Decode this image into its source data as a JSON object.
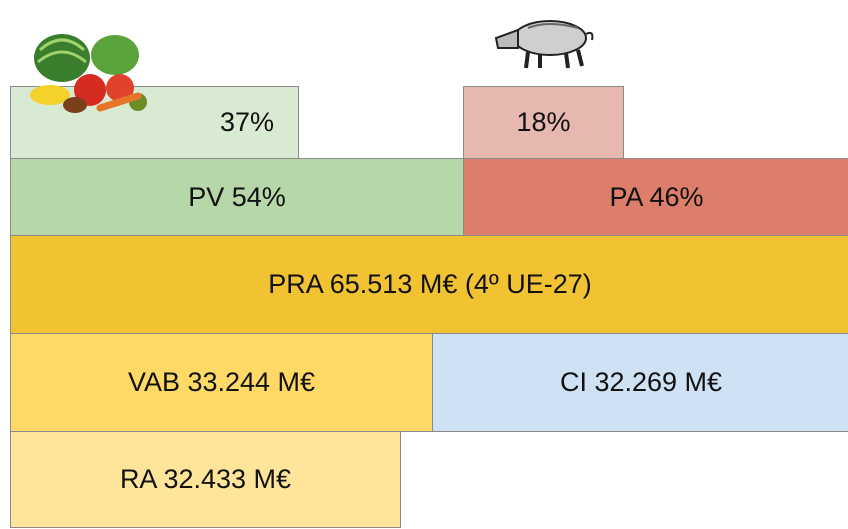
{
  "boxes": [
    {
      "label": "37%"
    },
    {
      "label": "18%"
    },
    {
      "label": "PV 54%"
    },
    {
      "label": "PA 46%"
    },
    {
      "label": "PRA 65.513 M€ (4º UE-27)"
    },
    {
      "label": "VAB 33.244 M€"
    },
    {
      "label": "CI 32.269 M€"
    },
    {
      "label": "RA 32.433 M€"
    }
  ]
}
